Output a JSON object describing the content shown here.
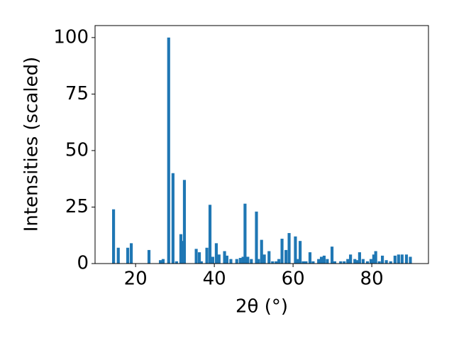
{
  "chart_data": {
    "type": "bar",
    "xlabel": "2θ (°)",
    "ylabel": "Intensities (scaled)",
    "x": [
      14.4,
      15.6,
      18.0,
      18.9,
      23.4,
      26.3,
      27.0,
      28.4,
      29.5,
      30.4,
      31.5,
      31.9,
      32.4,
      35.4,
      36.2,
      36.7,
      38.1,
      38.9,
      39.6,
      40.5,
      41.2,
      42.6,
      43.2,
      44.2,
      45.7,
      46.6,
      47.3,
      47.8,
      48.5,
      49.4,
      50.7,
      51.2,
      52.0,
      52.7,
      53.9,
      54.8,
      55.7,
      56.4,
      57.2,
      58.2,
      59.0,
      60.6,
      61.3,
      61.8,
      62.6,
      63.3,
      64.3,
      65.1,
      66.5,
      67.2,
      67.9,
      68.7,
      69.9,
      70.6,
      72.1,
      73.0,
      73.9,
      74.6,
      75.7,
      76.2,
      76.9,
      77.8,
      78.9,
      79.8,
      80.5,
      81.0,
      81.9,
      82.7,
      83.7,
      84.8,
      85.9,
      86.8,
      87.7,
      88.8,
      89.8
    ],
    "values": [
      24,
      7,
      7,
      9,
      6,
      1.5,
      2,
      100,
      40,
      1,
      13,
      10,
      37,
      6.5,
      5,
      1,
      7,
      26,
      3,
      9,
      4,
      5.5,
      3.5,
      2,
      2,
      2.5,
      3,
      26.5,
      3,
      2,
      23,
      2,
      10.5,
      4,
      5.5,
      1,
      1,
      2,
      11,
      6,
      13.5,
      12,
      2,
      10,
      1,
      1,
      5,
      1,
      2,
      3,
      3.5,
      2,
      7.5,
      1,
      1,
      1,
      2,
      4,
      2,
      1.5,
      5,
      2,
      1,
      2,
      4,
      5.5,
      1,
      3.5,
      1.5,
      1,
      3.5,
      4,
      4,
      4,
      3
    ],
    "bar_width": 0.75,
    "color": "#1f77b4",
    "xlim": [
      9.7,
      94.4
    ],
    "xticks": [
      20,
      40,
      60,
      80
    ],
    "ylim": [
      0,
      105.3
    ],
    "yticks": [
      0,
      25,
      50,
      75,
      100
    ]
  }
}
